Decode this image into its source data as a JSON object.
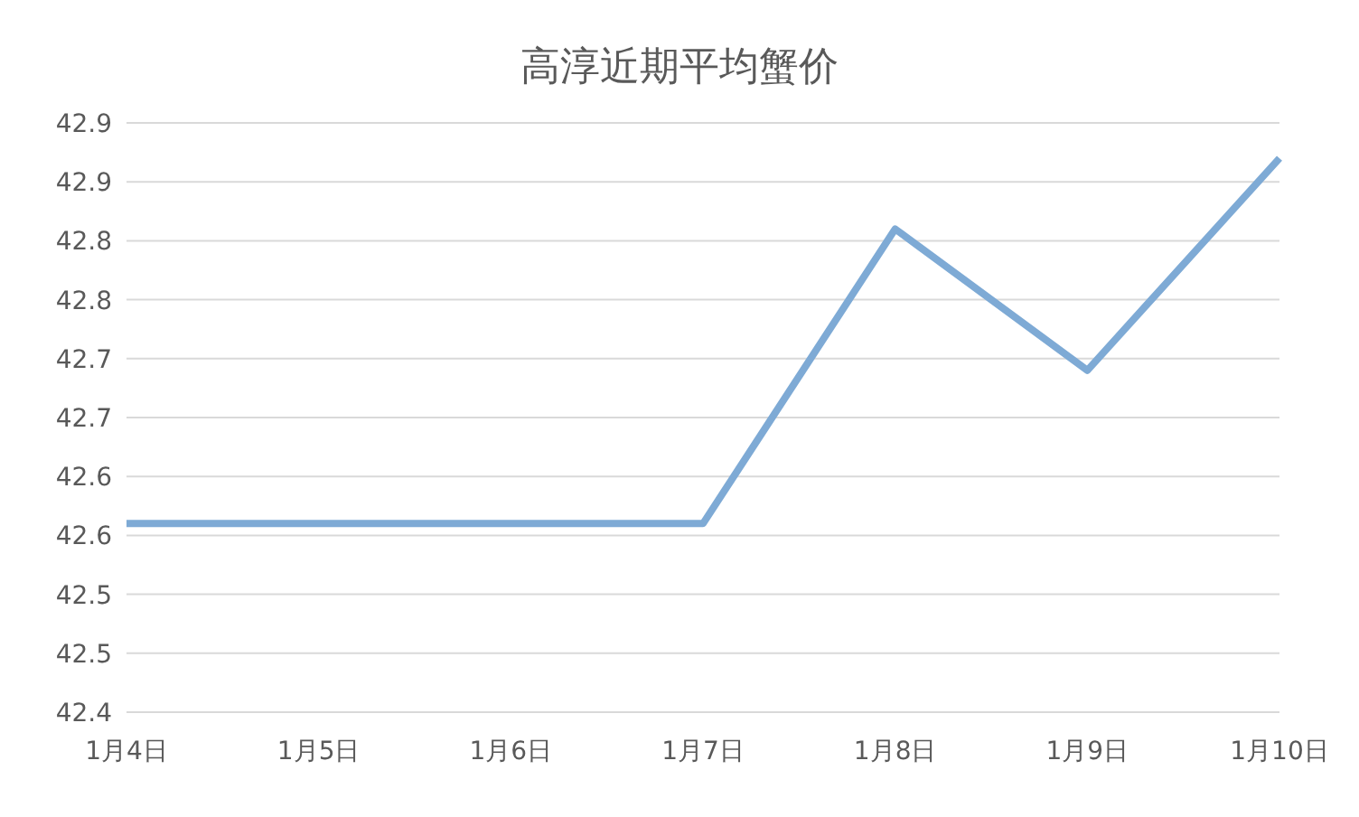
{
  "chart_data": {
    "type": "line",
    "title": "高淳近期平均蟹价",
    "categories": [
      "1月4日",
      "1月5日",
      "1月6日",
      "1月7日",
      "1月8日",
      "1月9日",
      "1月10日"
    ],
    "series": [
      {
        "color": "#7eaad5",
        "values": [
          42.56,
          42.56,
          42.56,
          42.56,
          42.81,
          42.69,
          42.87
        ]
      }
    ],
    "ylim": [
      42.4,
      42.9
    ],
    "yticks": [
      {
        "value": 42.4,
        "label": "42.4"
      },
      {
        "value": 42.45,
        "label": "42.5"
      },
      {
        "value": 42.5,
        "label": "42.5"
      },
      {
        "value": 42.55,
        "label": "42.6"
      },
      {
        "value": 42.6,
        "label": "42.6"
      },
      {
        "value": 42.65,
        "label": "42.7"
      },
      {
        "value": 42.7,
        "label": "42.7"
      },
      {
        "value": 42.75,
        "label": "42.8"
      },
      {
        "value": 42.8,
        "label": "42.8"
      },
      {
        "value": 42.85,
        "label": "42.9"
      },
      {
        "value": 42.9,
        "label": "42.9"
      }
    ],
    "grid": "y",
    "legend": false,
    "marker": "none",
    "line_style": "solid"
  }
}
